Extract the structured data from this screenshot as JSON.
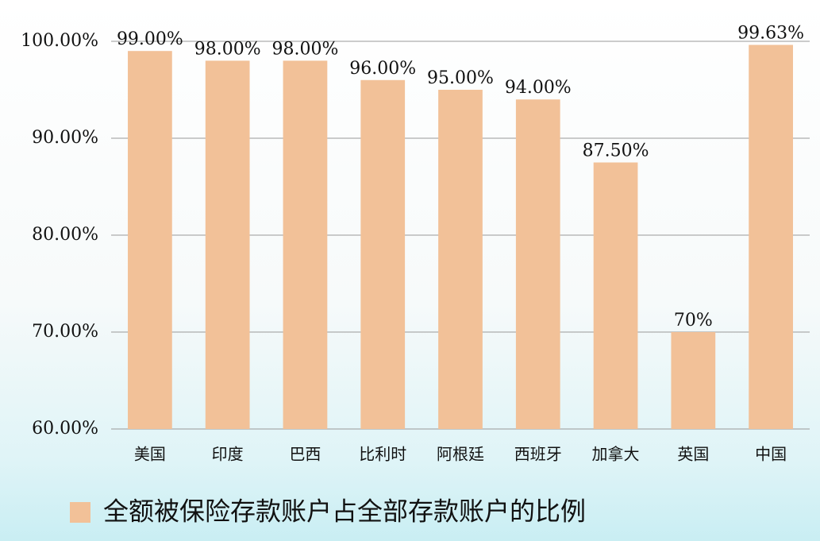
{
  "chart_data": {
    "type": "bar",
    "categories": [
      "美国",
      "印度",
      "巴西",
      "比利时",
      "阿根廷",
      "西班牙",
      "加拿大",
      "英国",
      "中国"
    ],
    "series": [
      {
        "name": "全额被保险存款账户占全部存款账户的比例",
        "color": "#f2c198",
        "values": [
          99,
          98,
          98,
          96,
          95,
          94,
          87.5,
          70,
          99.63
        ],
        "value_labels": [
          "99.00%",
          "98.00%",
          "98.00%",
          "96.00%",
          "95.00%",
          "94.00%",
          "87.50%",
          "70%",
          "99.63%"
        ]
      }
    ],
    "ylim": [
      60,
      100
    ],
    "yticks": [
      {
        "value": 60,
        "label": "60.00%"
      },
      {
        "value": 70,
        "label": "70.00%"
      },
      {
        "value": 80,
        "label": "80.00%"
      },
      {
        "value": 90,
        "label": "90.00%"
      },
      {
        "value": 100,
        "label": "100.00%"
      }
    ],
    "grid": true,
    "legend": "bottom"
  }
}
